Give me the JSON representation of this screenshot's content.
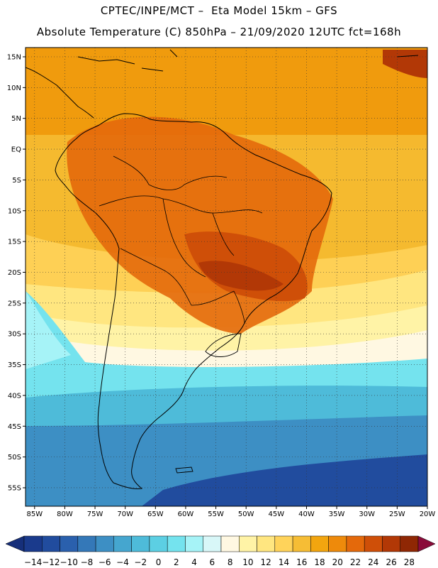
{
  "title": {
    "line1": "CPTEC/INPE/MCT –  Eta Model 15km – GFS",
    "line2": "Absolute Temperature (C) 850hPa – 21/09/2020 12UTC fct=168h"
  },
  "axes": {
    "lat_labels": [
      "15N",
      "10N",
      "5N",
      "EQ",
      "5S",
      "10S",
      "15S",
      "20S",
      "25S",
      "30S",
      "35S",
      "40S",
      "45S",
      "50S",
      "55S"
    ],
    "lat_values": [
      15,
      10,
      5,
      0,
      -5,
      -10,
      -15,
      -20,
      -25,
      -30,
      -35,
      -40,
      -45,
      -50,
      -55
    ],
    "lon_labels": [
      "85W",
      "80W",
      "75W",
      "70W",
      "65W",
      "60W",
      "55W",
      "50W",
      "45W",
      "40W",
      "35W",
      "30W",
      "25W",
      "20W"
    ],
    "lon_values": [
      -85,
      -80,
      -75,
      -70,
      -65,
      -60,
      -55,
      -50,
      -45,
      -40,
      -35,
      -30,
      -25,
      -20
    ],
    "lat_range": [
      -58,
      16.5
    ],
    "lon_range": [
      -86.5,
      -20
    ]
  },
  "legend": {
    "labels": [
      "-14",
      "-12",
      "-10",
      "-8",
      "-6",
      "-4",
      "-2",
      "0",
      "2",
      "4",
      "6",
      "8",
      "10",
      "12",
      "14",
      "16",
      "18",
      "20",
      "22",
      "24",
      "26",
      "28"
    ],
    "colors": [
      "#1a3a8c",
      "#214c9e",
      "#2a60ad",
      "#3478b8",
      "#3d8fc4",
      "#45a6cf",
      "#4ebbd9",
      "#5ccfe3",
      "#74e3ee",
      "#a6f3f7",
      "#d8f7f8",
      "#fff8e2",
      "#fff3a6",
      "#ffe680",
      "#ffd35a",
      "#f6bd35",
      "#f2a50f",
      "#ee8a0b",
      "#e4690b",
      "#cf4f08",
      "#b23806",
      "#8f2704"
    ],
    "under_color": "#162f7a",
    "over_color": "#8a0c3a"
  },
  "map": {
    "ocean_regions": [
      {
        "name": "tropical-atlantic",
        "value_c": 18
      },
      {
        "name": "south-atlantic",
        "value_c": 2
      },
      {
        "name": "southern-ocean",
        "value_c": -6
      }
    ]
  }
}
